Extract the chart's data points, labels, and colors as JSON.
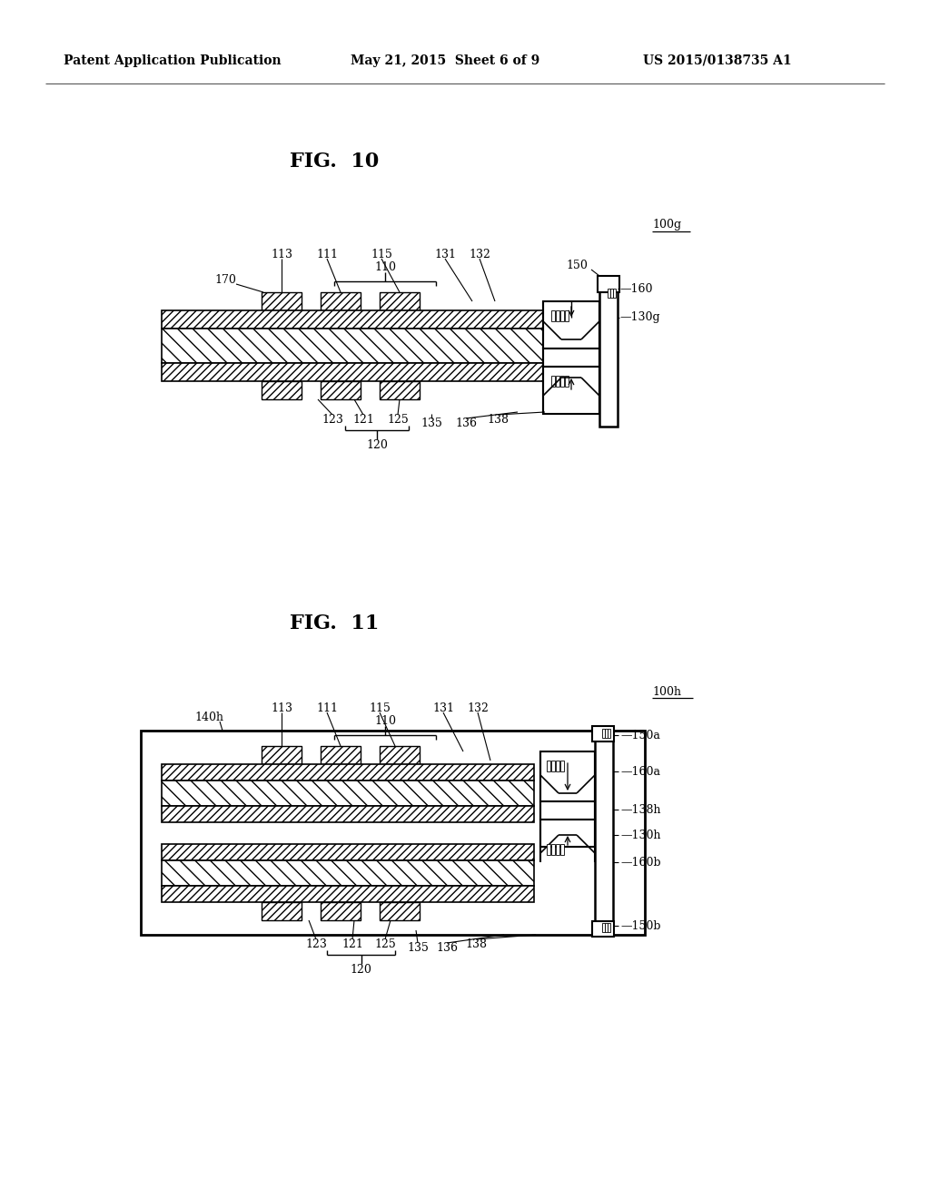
{
  "bg_color": "#ffffff",
  "header_left": "Patent Application Publication",
  "header_center": "May 21, 2015  Sheet 6 of 9",
  "header_right": "US 2015/0138735 A1",
  "fig10_title": "FIG.  10",
  "fig11_title": "FIG.  11",
  "fig10_ref": "100g",
  "fig11_ref": "100h"
}
